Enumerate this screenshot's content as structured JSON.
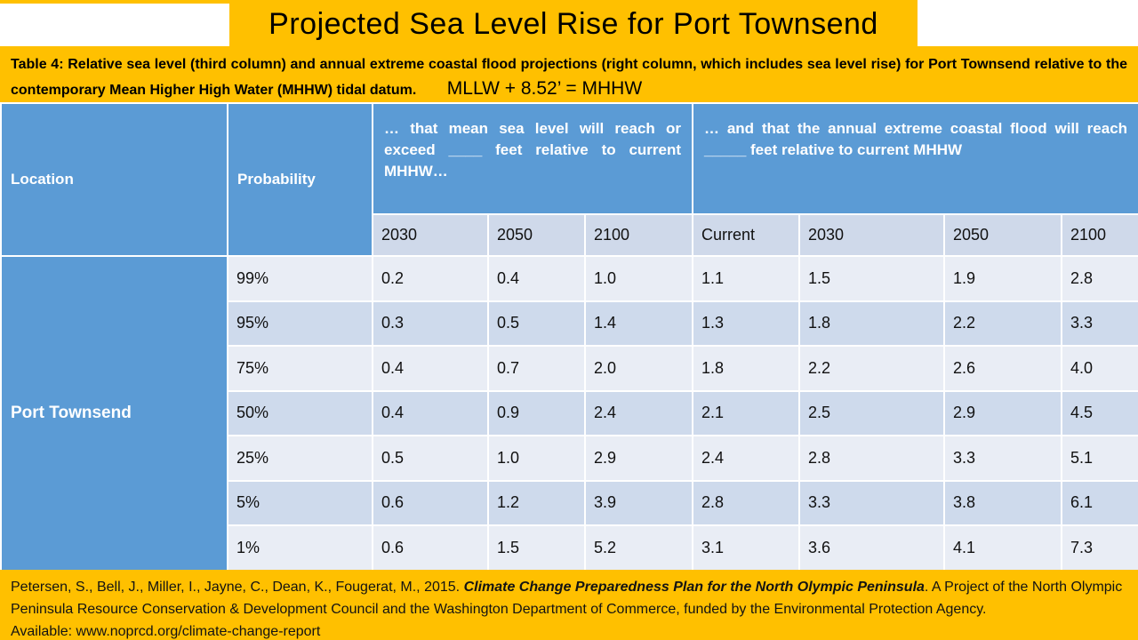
{
  "slide_title": "Projected Sea Level Rise for Port Townsend",
  "caption": {
    "text": "Table 4: Relative sea level (third column) and annual extreme coastal flood projections (right column, which includes sea level rise) for Port Townsend relative to the contemporary Mean Higher High Water (MHHW) tidal datum.",
    "formula": "MLLW + 8.52’ = MHHW"
  },
  "table": {
    "header": {
      "location": "Location",
      "probability": "Probability",
      "sea_level_header": "… that mean sea level will reach or exceed ____ feet relative to current MHHW…",
      "flood_header": "… and that the annual extreme coastal flood will reach _____ feet relative to current MHHW"
    },
    "year_columns": [
      "2030",
      "2050",
      "2100",
      "Current",
      "2030",
      "2050",
      "2100"
    ],
    "location_value": "Port Townsend",
    "rows": [
      {
        "probability": "99%",
        "values": [
          "0.2",
          "0.4",
          "1.0",
          "1.1",
          "1.5",
          "1.9",
          "2.8"
        ]
      },
      {
        "probability": "95%",
        "values": [
          "0.3",
          "0.5",
          "1.4",
          "1.3",
          "1.8",
          "2.2",
          "3.3"
        ]
      },
      {
        "probability": "75%",
        "values": [
          "0.4",
          "0.7",
          "2.0",
          "1.8",
          "2.2",
          "2.6",
          "4.0"
        ]
      },
      {
        "probability": "50%",
        "values": [
          "0.4",
          "0.9",
          "2.4",
          "2.1",
          "2.5",
          "2.9",
          "4.5"
        ]
      },
      {
        "probability": "25%",
        "values": [
          "0.5",
          "1.0",
          "2.9",
          "2.4",
          "2.8",
          "3.3",
          "5.1"
        ]
      },
      {
        "probability": "5%",
        "values": [
          "0.6",
          "1.2",
          "3.9",
          "2.8",
          "3.3",
          "3.8",
          "6.1"
        ]
      },
      {
        "probability": "1%",
        "values": [
          "0.6",
          "1.5",
          "5.2",
          "3.1",
          "3.6",
          "4.1",
          "7.3"
        ]
      }
    ]
  },
  "footer": {
    "segments": [
      {
        "text": "Petersen, S., Bell, J., Miller, I., Jayne, C., Dean, K., Fougerat, M., 2015. ",
        "emphasis": false,
        "new_line": false
      },
      {
        "text": "Climate Change Preparedness Plan for the North Olympic Peninsula",
        "emphasis": true,
        "new_line": false
      },
      {
        "text": ". A Project of the North Olympic Peninsula Resource Conservation & Development Council and the Washington Department of Commerce, funded by the Environmental Protection Agency.",
        "emphasis": false,
        "new_line": false
      },
      {
        "text": "Available: www.noprcd.org/climate-change-report",
        "emphasis": false,
        "new_line": true
      }
    ]
  },
  "colors": {
    "accent_orange": "#FFC000",
    "header_blue": "#5B9BD5",
    "row_light": "#E9EDF5",
    "row_dark": "#CEDAEC",
    "year_row_bg": "#CFD9EA",
    "header_text": "#FFFFFF",
    "grid_line": "#FFFFFF"
  }
}
